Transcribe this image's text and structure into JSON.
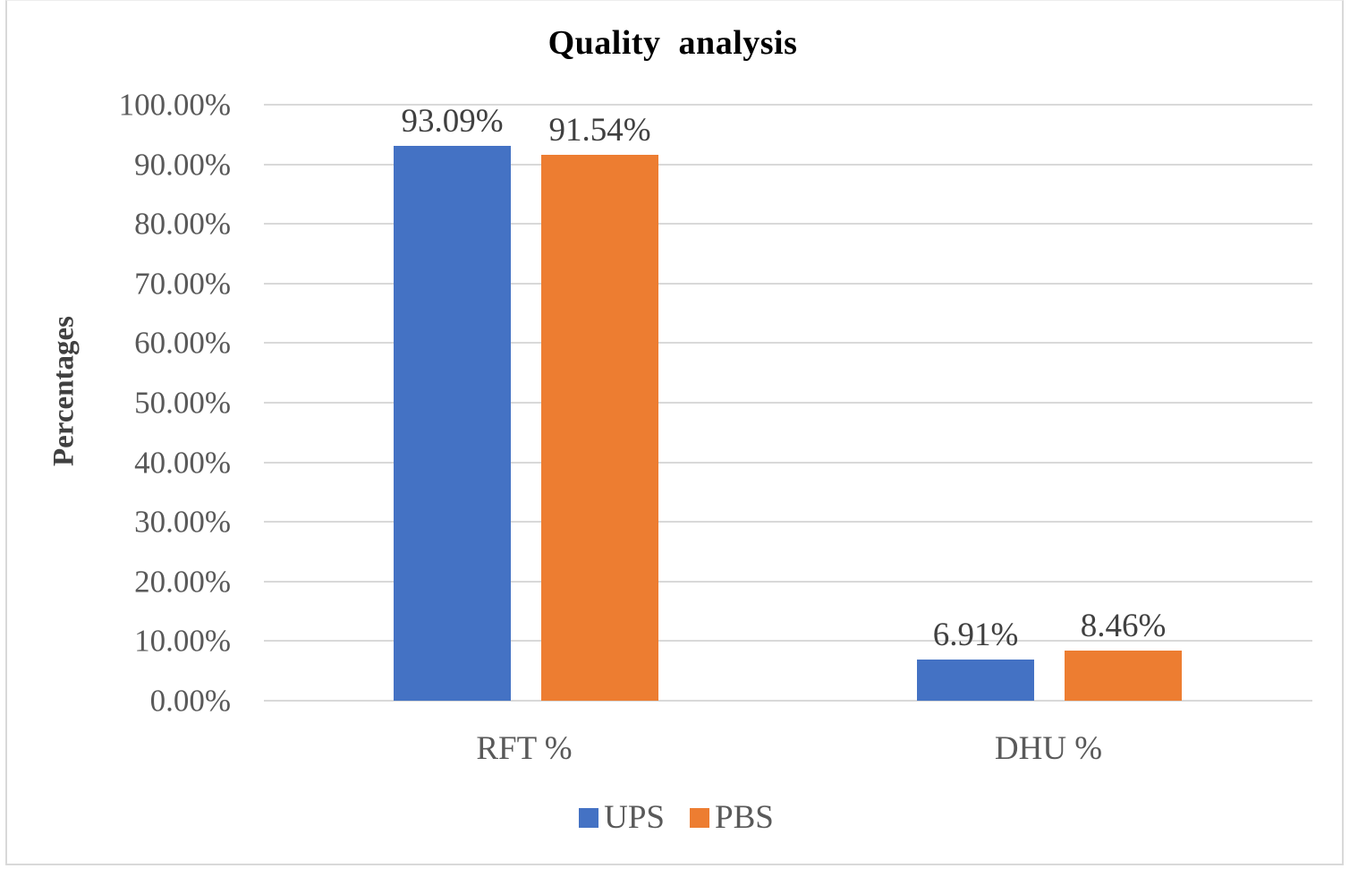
{
  "chart_data": {
    "type": "bar",
    "title": "Quality  analysis",
    "xlabel": "",
    "ylabel": "Percentages",
    "ylim": [
      0,
      100
    ],
    "yticks": [
      "0.00%",
      "10.00%",
      "20.00%",
      "30.00%",
      "40.00%",
      "50.00%",
      "60.00%",
      "70.00%",
      "80.00%",
      "90.00%",
      "100.00%"
    ],
    "grid": true,
    "legend_position": "bottom",
    "categories": [
      "RFT %",
      "DHU %"
    ],
    "series": [
      {
        "name": "UPS",
        "color": "#4472c4",
        "values": [
          93.09,
          6.91
        ],
        "labels": [
          "93.09%",
          "6.91%"
        ]
      },
      {
        "name": "PBS",
        "color": "#ed7d31",
        "values": [
          91.54,
          8.46
        ],
        "labels": [
          "91.54%",
          "8.46%"
        ]
      }
    ]
  }
}
